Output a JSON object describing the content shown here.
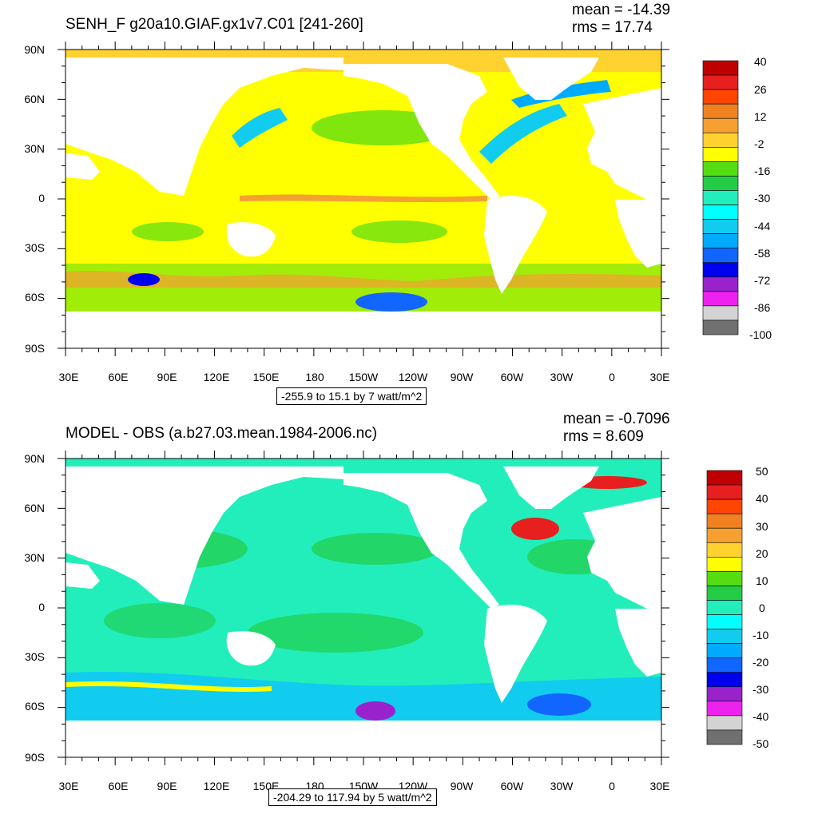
{
  "panels": [
    {
      "title": "SENH_F g20a10.GIAF.gx1v7.C01 [241-260]",
      "mean": "mean = -14.39",
      "rms": "rms = 17.74",
      "range": "-255.9 to 15.1 by 7 watt/m^2",
      "colorbar_labels": [
        "40",
        "26",
        "12",
        "-2",
        "-16",
        "-30",
        "-44",
        "-58",
        "-72",
        "-86",
        "-100"
      ]
    },
    {
      "title": "MODEL - OBS (a.b27.03.mean.1984-2006.nc)",
      "mean": "mean = -0.7096",
      "rms": "rms = 8.609",
      "range": "-204.29 to 117.94 by 5 watt/m^2",
      "colorbar_labels": [
        "50",
        "40",
        "30",
        "20",
        "10",
        "0",
        "-10",
        "-20",
        "-30",
        "-40",
        "-50"
      ]
    }
  ],
  "lat_labels": [
    "90N",
    "60N",
    "30N",
    "0",
    "30S",
    "60S",
    "90S"
  ],
  "lon_labels": [
    "30E",
    "60E",
    "90E",
    "120E",
    "150E",
    "180",
    "150W",
    "120W",
    "90W",
    "60W",
    "30W",
    "0",
    "30E"
  ],
  "colorbar_colors": [
    "#c00000",
    "#e81f1f",
    "#ff4500",
    "#f08020",
    "#f5a030",
    "#ffd230",
    "#ffff00",
    "#55dd11",
    "#22cc44",
    "#22eebb",
    "#00ffff",
    "#11ccee",
    "#00aaff",
    "#1166ff",
    "#0000ee",
    "#9922cc",
    "#ee22ee",
    "#d3d3d3",
    "#707070"
  ],
  "palette": {
    "land": "#ffffff",
    "ocean_bg_p1": "#ffff00",
    "ocean_bg_p2": "#22eebb"
  }
}
